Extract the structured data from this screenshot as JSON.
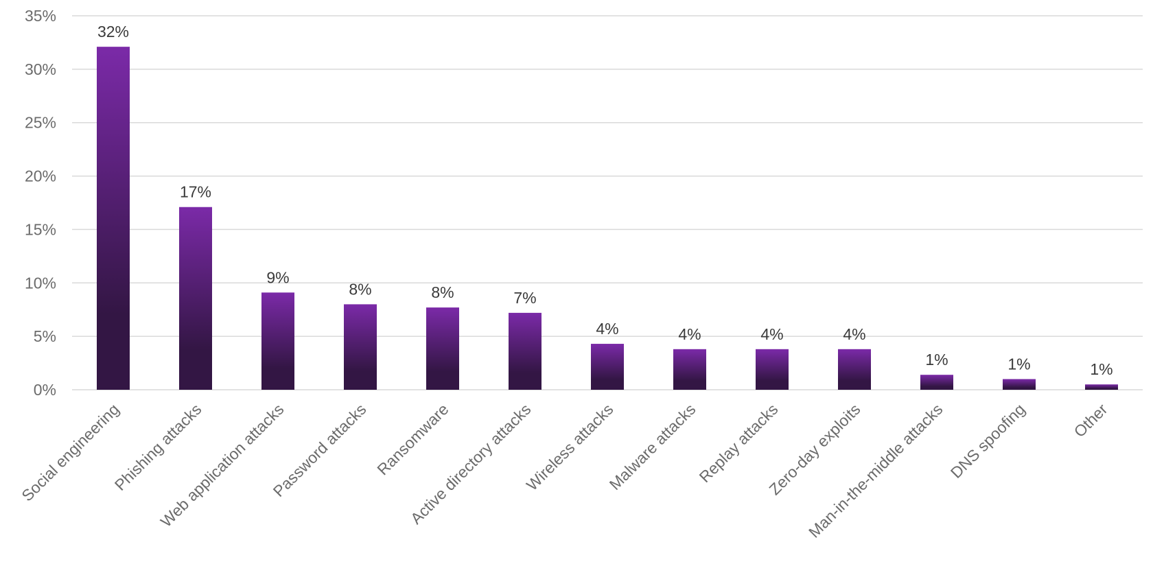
{
  "chart_data": {
    "type": "bar",
    "categories": [
      "Social engineering",
      "Phishing attacks",
      "Web application attacks",
      "Password attacks",
      "Ransomware",
      "Active directory attacks",
      "Wireless attacks",
      "Malware attacks",
      "Replay attacks",
      "Zero-day exploits",
      "Man-in-the-middle attacks",
      "DNS spoofing",
      "Other"
    ],
    "values": [
      32.1,
      17.1,
      9.1,
      8.0,
      7.7,
      7.2,
      4.3,
      3.8,
      3.8,
      3.8,
      1.4,
      1.0,
      0.5
    ],
    "data_labels": [
      "32%",
      "17%",
      "9%",
      "8%",
      "8%",
      "7%",
      "4%",
      "4%",
      "4%",
      "4%",
      "1%",
      "1%",
      "1%"
    ],
    "ylim": [
      0,
      35
    ],
    "y_ticks": [
      0,
      5,
      10,
      15,
      20,
      25,
      30,
      35
    ],
    "y_tick_labels": [
      "0%",
      "5%",
      "10%",
      "15%",
      "20%",
      "25%",
      "30%",
      "35%"
    ],
    "grid": true,
    "legend": "none",
    "colors": {
      "bar_top": "#7b2aa8",
      "bar_bottom": "#331644",
      "grid": "#d9d9d9"
    }
  }
}
